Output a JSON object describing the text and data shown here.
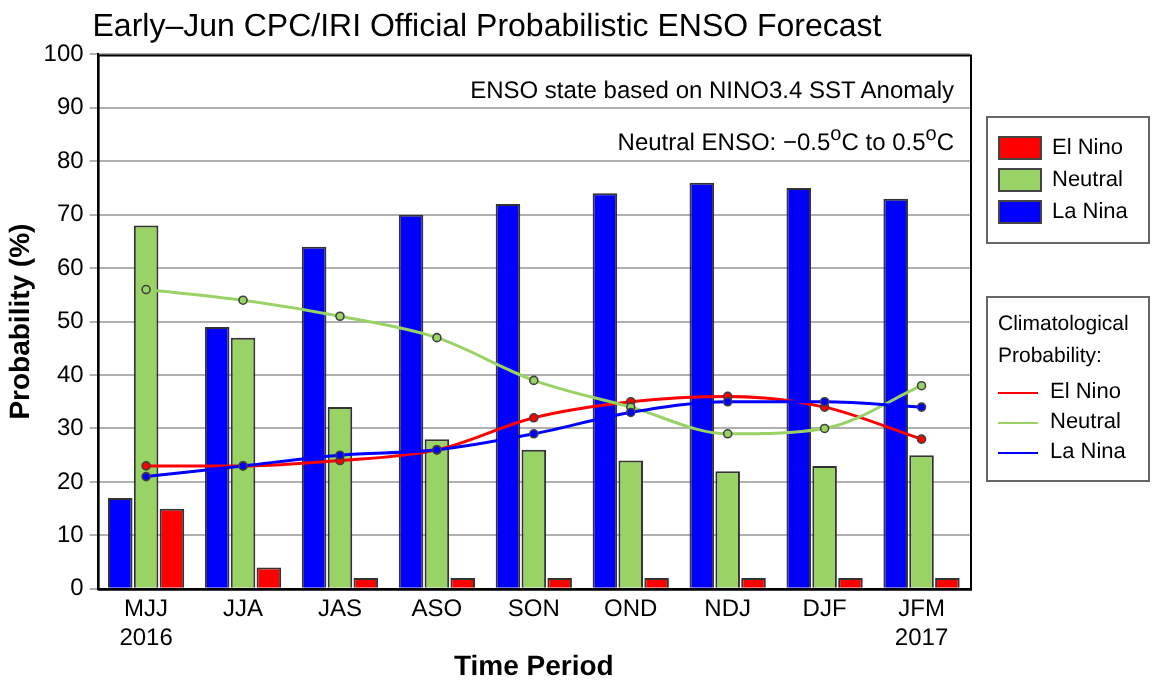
{
  "chart_data": {
    "type": "bar",
    "title": "Early–Jun CPC/IRI Official Probabilistic ENSO Forecast",
    "xlabel": "Time Period",
    "ylabel": "Probability (%)",
    "legend_title": "Climatological Probability:",
    "annotations": [
      "ENSO state based on NINO3.4 SST Anomaly",
      "Neutral ENSO: −0.5$^{o}$C to 0.5$^{o}$C"
    ],
    "categories": [
      "MJJ\n2016",
      "JJA",
      "JAS",
      "ASO",
      "SON",
      "OND",
      "NDJ",
      "DJF",
      "JFM\n2017"
    ],
    "ylim": [
      0,
      100
    ],
    "yticks": [
      0,
      10,
      20,
      30,
      40,
      50,
      60,
      70,
      80,
      90,
      100
    ],
    "grid": "y",
    "legend": "right",
    "marker": "circle",
    "series": [
      {
        "name": "La Nina",
        "color": "#0000ff",
        "values": [
          17,
          49,
          64,
          70,
          72,
          74,
          76,
          75,
          73
        ]
      },
      {
        "name": "Neutral",
        "color": "#99d366",
        "values": [
          68,
          47,
          34,
          28,
          26,
          24,
          22,
          23,
          25
        ]
      },
      {
        "name": "El Nino",
        "color": "#ff0000",
        "values": [
          15,
          4,
          2,
          2,
          2,
          2,
          2,
          2,
          2
        ]
      },
      {
        "type": "line",
        "name": "El Nino",
        "color": "#ff0000",
        "values": [
          23,
          23,
          24,
          26,
          32,
          35,
          36,
          34,
          28
        ]
      },
      {
        "type": "line",
        "name": "Neutral",
        "color": "#99d366",
        "values": [
          56,
          54,
          51,
          47,
          39,
          34,
          29,
          30,
          38
        ]
      },
      {
        "type": "line",
        "name": "La Nina",
        "color": "#0000ff",
        "values": [
          21,
          23,
          25,
          26,
          29,
          33,
          35,
          35,
          34
        ]
      }
    ]
  }
}
